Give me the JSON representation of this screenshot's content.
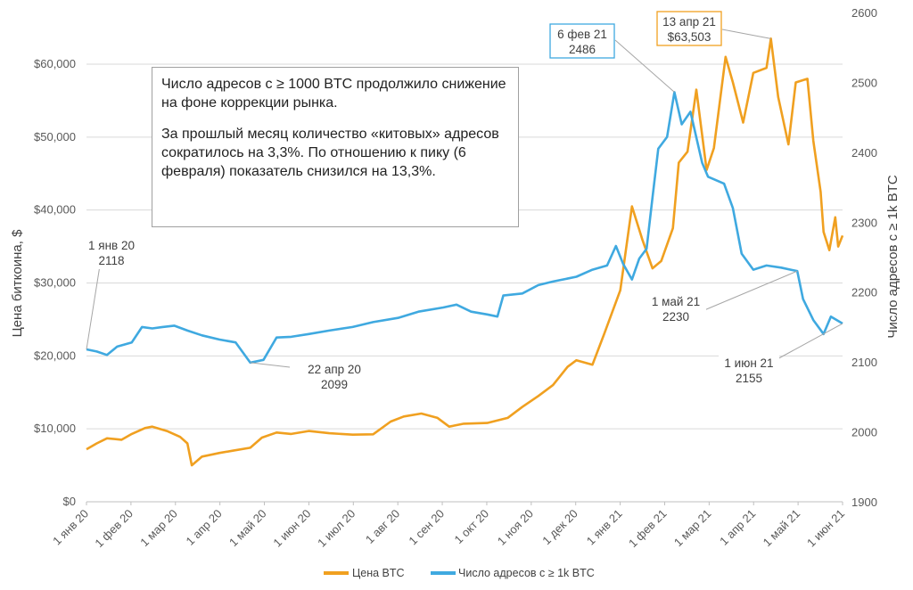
{
  "chart_data": {
    "type": "line",
    "left_axis": {
      "label": "Цена биткоина, $",
      "ylim": [
        0,
        60000
      ],
      "ticks": [
        "$0",
        "$10,000",
        "$20,000",
        "$30,000",
        "$40,000",
        "$50,000",
        "$60,000"
      ]
    },
    "right_axis": {
      "label": "Число адресов с ≥ 1k BTC",
      "ylim": [
        1900,
        2600
      ],
      "ticks": [
        "1900",
        "2000",
        "2100",
        "2200",
        "2300",
        "2400",
        "2500",
        "2600"
      ]
    },
    "x_ticks": [
      "1 янв 20",
      "1 фев 20",
      "1 мар 20",
      "1 апр 20",
      "1 май 20",
      "1 июн 20",
      "1 июл 20",
      "1 авг 20",
      "1 сен 20",
      "1 окт 20",
      "1 ноя 20",
      "1 дек 20",
      "1 янв 21",
      "1 фев 21",
      "1 мар 21",
      "1 апр 21",
      "1 май 21",
      "1 июн 21"
    ],
    "x_range": [
      "2020-01-01",
      "2021-06-01"
    ],
    "grid": true,
    "legend_position": "bottom",
    "series": [
      {
        "name": "Цена BTC",
        "axis": "left",
        "color": "#f0a020",
        "points": [
          [
            "2020-01-01",
            7200
          ],
          [
            "2020-01-08",
            8000
          ],
          [
            "2020-01-15",
            8700
          ],
          [
            "2020-01-25",
            8500
          ],
          [
            "2020-02-01",
            9300
          ],
          [
            "2020-02-10",
            10100
          ],
          [
            "2020-02-15",
            10300
          ],
          [
            "2020-02-25",
            9700
          ],
          [
            "2020-03-05",
            8900
          ],
          [
            "2020-03-10",
            8000
          ],
          [
            "2020-03-13",
            5000
          ],
          [
            "2020-03-20",
            6200
          ],
          [
            "2020-04-01",
            6700
          ],
          [
            "2020-04-10",
            7000
          ],
          [
            "2020-04-22",
            7400
          ],
          [
            "2020-04-30",
            8800
          ],
          [
            "2020-05-10",
            9500
          ],
          [
            "2020-05-20",
            9300
          ],
          [
            "2020-06-01",
            9700
          ],
          [
            "2020-06-15",
            9400
          ],
          [
            "2020-07-01",
            9200
          ],
          [
            "2020-07-15",
            9250
          ],
          [
            "2020-07-27",
            11000
          ],
          [
            "2020-08-05",
            11700
          ],
          [
            "2020-08-17",
            12100
          ],
          [
            "2020-08-28",
            11500
          ],
          [
            "2020-09-05",
            10300
          ],
          [
            "2020-09-15",
            10700
          ],
          [
            "2020-10-01",
            10800
          ],
          [
            "2020-10-15",
            11500
          ],
          [
            "2020-10-25",
            13000
          ],
          [
            "2020-11-05",
            14500
          ],
          [
            "2020-11-15",
            16000
          ],
          [
            "2020-11-25",
            18500
          ],
          [
            "2020-12-01",
            19400
          ],
          [
            "2020-12-12",
            18800
          ],
          [
            "2020-12-20",
            23000
          ],
          [
            "2020-12-31",
            29000
          ],
          [
            "2021-01-08",
            40500
          ],
          [
            "2021-01-15",
            36000
          ],
          [
            "2021-01-22",
            32000
          ],
          [
            "2021-01-28",
            33000
          ],
          [
            "2021-02-05",
            37500
          ],
          [
            "2021-02-09",
            46500
          ],
          [
            "2021-02-15",
            48000
          ],
          [
            "2021-02-21",
            56500
          ],
          [
            "2021-02-28",
            45500
          ],
          [
            "2021-03-05",
            48500
          ],
          [
            "2021-03-13",
            61000
          ],
          [
            "2021-03-18",
            57500
          ],
          [
            "2021-03-25",
            52000
          ],
          [
            "2021-04-01",
            58800
          ],
          [
            "2021-04-10",
            59500
          ],
          [
            "2021-04-13",
            63503
          ],
          [
            "2021-04-18",
            55500
          ],
          [
            "2021-04-25",
            49000
          ],
          [
            "2021-04-30",
            57500
          ],
          [
            "2021-05-08",
            58000
          ],
          [
            "2021-05-12",
            49500
          ],
          [
            "2021-05-17",
            42500
          ],
          [
            "2021-05-19",
            37000
          ],
          [
            "2021-05-23",
            34500
          ],
          [
            "2021-05-27",
            39000
          ],
          [
            "2021-05-29",
            35000
          ],
          [
            "2021-06-01",
            36500
          ]
        ]
      },
      {
        "name": "Число адресов с ≥ 1k BTC",
        "axis": "right",
        "color": "#3fa9e0",
        "points": [
          [
            "2020-01-01",
            2118
          ],
          [
            "2020-01-08",
            2115
          ],
          [
            "2020-01-15",
            2110
          ],
          [
            "2020-01-22",
            2122
          ],
          [
            "2020-02-01",
            2128
          ],
          [
            "2020-02-08",
            2150
          ],
          [
            "2020-02-15",
            2148
          ],
          [
            "2020-02-22",
            2150
          ],
          [
            "2020-03-01",
            2152
          ],
          [
            "2020-03-10",
            2145
          ],
          [
            "2020-03-20",
            2138
          ],
          [
            "2020-04-01",
            2132
          ],
          [
            "2020-04-12",
            2128
          ],
          [
            "2020-04-22",
            2099
          ],
          [
            "2020-05-01",
            2103
          ],
          [
            "2020-05-10",
            2135
          ],
          [
            "2020-05-20",
            2136
          ],
          [
            "2020-06-01",
            2140
          ],
          [
            "2020-06-15",
            2145
          ],
          [
            "2020-07-01",
            2150
          ],
          [
            "2020-07-15",
            2157
          ],
          [
            "2020-08-01",
            2163
          ],
          [
            "2020-08-15",
            2172
          ],
          [
            "2020-09-01",
            2178
          ],
          [
            "2020-09-10",
            2182
          ],
          [
            "2020-09-20",
            2172
          ],
          [
            "2020-10-01",
            2168
          ],
          [
            "2020-10-08",
            2165
          ],
          [
            "2020-10-12",
            2195
          ],
          [
            "2020-10-25",
            2198
          ],
          [
            "2020-11-05",
            2210
          ],
          [
            "2020-11-15",
            2215
          ],
          [
            "2020-12-01",
            2222
          ],
          [
            "2020-12-12",
            2232
          ],
          [
            "2020-12-22",
            2238
          ],
          [
            "2020-12-28",
            2266
          ],
          [
            "2021-01-02",
            2240
          ],
          [
            "2021-01-08",
            2218
          ],
          [
            "2021-01-13",
            2248
          ],
          [
            "2021-01-18",
            2262
          ],
          [
            "2021-01-22",
            2335
          ],
          [
            "2021-01-26",
            2405
          ],
          [
            "2021-02-01",
            2422
          ],
          [
            "2021-02-06",
            2486
          ],
          [
            "2021-02-11",
            2440
          ],
          [
            "2021-02-17",
            2458
          ],
          [
            "2021-02-25",
            2385
          ],
          [
            "2021-03-01",
            2365
          ],
          [
            "2021-03-12",
            2355
          ],
          [
            "2021-03-18",
            2320
          ],
          [
            "2021-03-24",
            2255
          ],
          [
            "2021-04-01",
            2232
          ],
          [
            "2021-04-10",
            2238
          ],
          [
            "2021-04-20",
            2235
          ],
          [
            "2021-05-01",
            2230
          ],
          [
            "2021-05-05",
            2190
          ],
          [
            "2021-05-12",
            2160
          ],
          [
            "2021-05-19",
            2140
          ],
          [
            "2021-05-24",
            2165
          ],
          [
            "2021-06-01",
            2155
          ]
        ]
      }
    ],
    "annotations": [
      {
        "date": "1 янв 20",
        "value": "2118"
      },
      {
        "date": "22 апр 20",
        "value": "2099"
      },
      {
        "date": "6 фев 21",
        "value": "2486"
      },
      {
        "date": "13 апр 21",
        "value": "$63,503"
      },
      {
        "date": "1 май 21",
        "value": "2230"
      },
      {
        "date": "1 июн 21",
        "value": "2155"
      }
    ],
    "note": [
      "Число адресов с ≥ 1000 BTC продолжило снижение на фоне коррекции рынка.",
      "За прошлый месяц количество «китовых» адресов сократилось на 3,3%. По отношению к пику (6 февраля) показатель снизился на 13,3%."
    ]
  }
}
